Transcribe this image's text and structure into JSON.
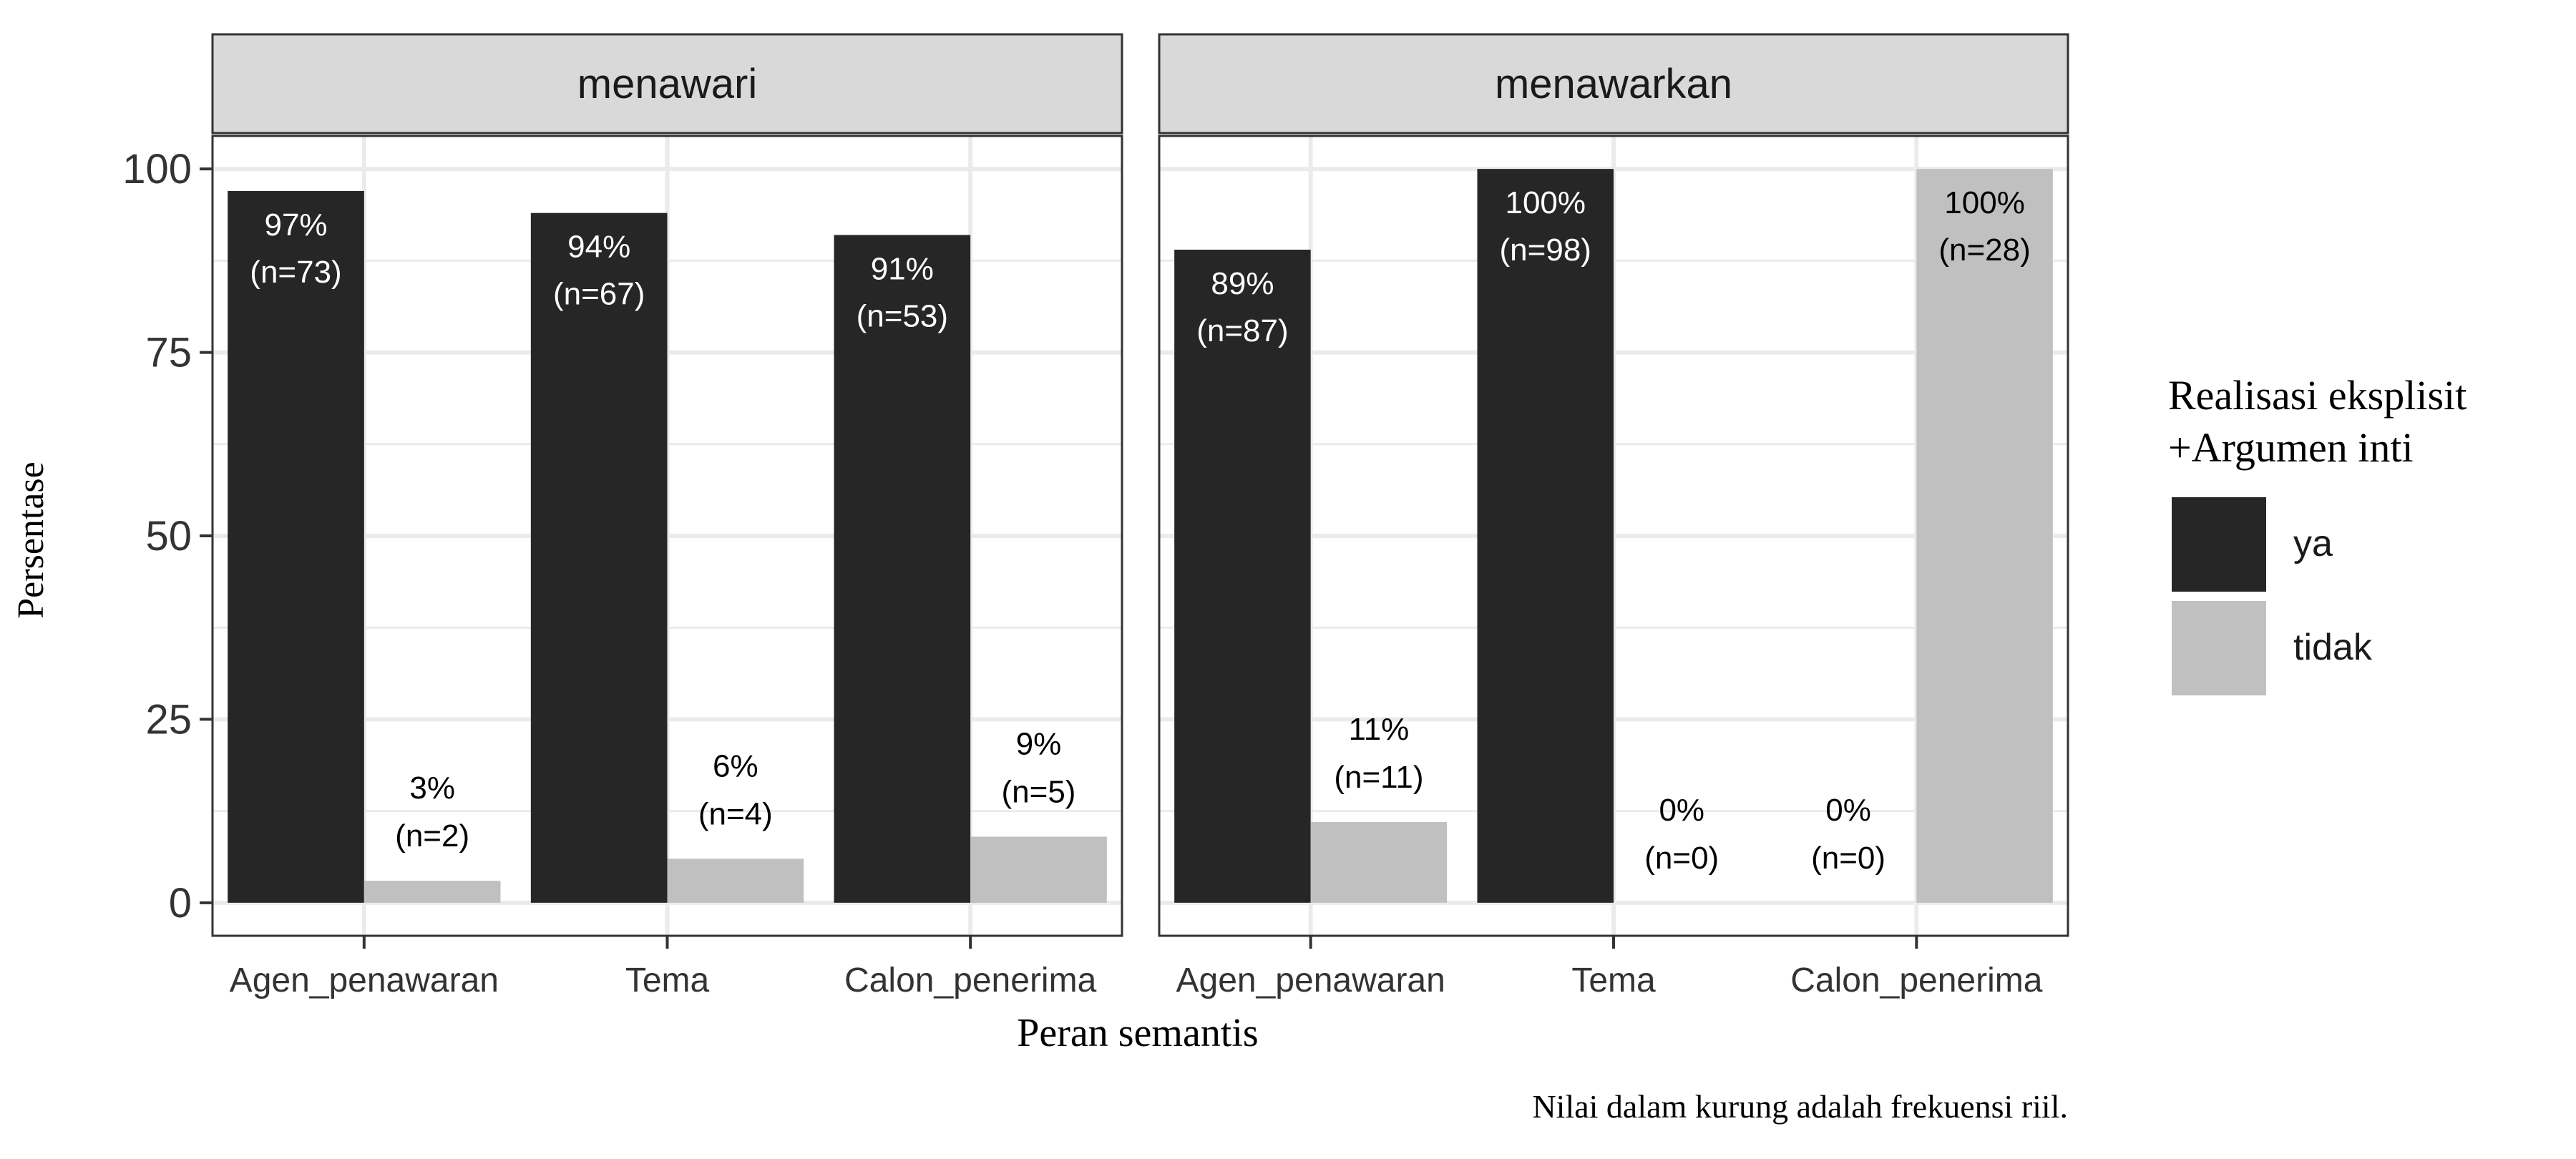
{
  "chart_data": {
    "type": "bar",
    "xlabel": "Peran semantis",
    "ylabel": "Persentase",
    "caption": "Nilai dalam kurung adalah frekuensi riil.",
    "ylim": [
      -4.5,
      104.5
    ],
    "yticks": [
      0,
      25,
      50,
      75,
      100
    ],
    "categories": [
      "Agen_penawaran",
      "Tema",
      "Calon_penerima"
    ],
    "legend": {
      "title_line1": "Realisasi eksplisit",
      "title_line2": "+Argumen inti",
      "position": "right",
      "entries": [
        {
          "key": "ya",
          "label": "ya",
          "color": "#262626"
        },
        {
          "key": "tidak",
          "label": "tidak",
          "color": "#c0c0c0"
        }
      ]
    },
    "panels": [
      {
        "title": "menawari",
        "series": [
          {
            "key": "ya",
            "values": [
              97,
              94,
              91
            ],
            "pct_labels": [
              "97%",
              "94%",
              "91%"
            ],
            "n_labels": [
              "(n=73)",
              "(n=67)",
              "(n=53)"
            ]
          },
          {
            "key": "tidak",
            "values": [
              3,
              6,
              9
            ],
            "pct_labels": [
              "3%",
              "6%",
              "9%"
            ],
            "n_labels": [
              "(n=2)",
              "(n=4)",
              "(n=5)"
            ]
          }
        ]
      },
      {
        "title": "menawarkan",
        "series": [
          {
            "key": "ya",
            "values": [
              89,
              100,
              0
            ],
            "pct_labels": [
              "89%",
              "100%",
              "0%"
            ],
            "n_labels": [
              "(n=87)",
              "(n=98)",
              "(n=0)"
            ]
          },
          {
            "key": "tidak",
            "values": [
              11,
              0,
              100
            ],
            "pct_labels": [
              "11%",
              "0%",
              "100%"
            ],
            "n_labels": [
              "(n=11)",
              "(n=0)",
              "(n=28)"
            ]
          }
        ]
      }
    ],
    "grid": true,
    "colors": {
      "panel_border": "#333333",
      "strip_fill": "#d9d9d9",
      "grid_major": "#ebebeb",
      "text": "#1a1a1a",
      "label_on_dark": "#ffffff",
      "label_on_light": "#000000"
    }
  }
}
